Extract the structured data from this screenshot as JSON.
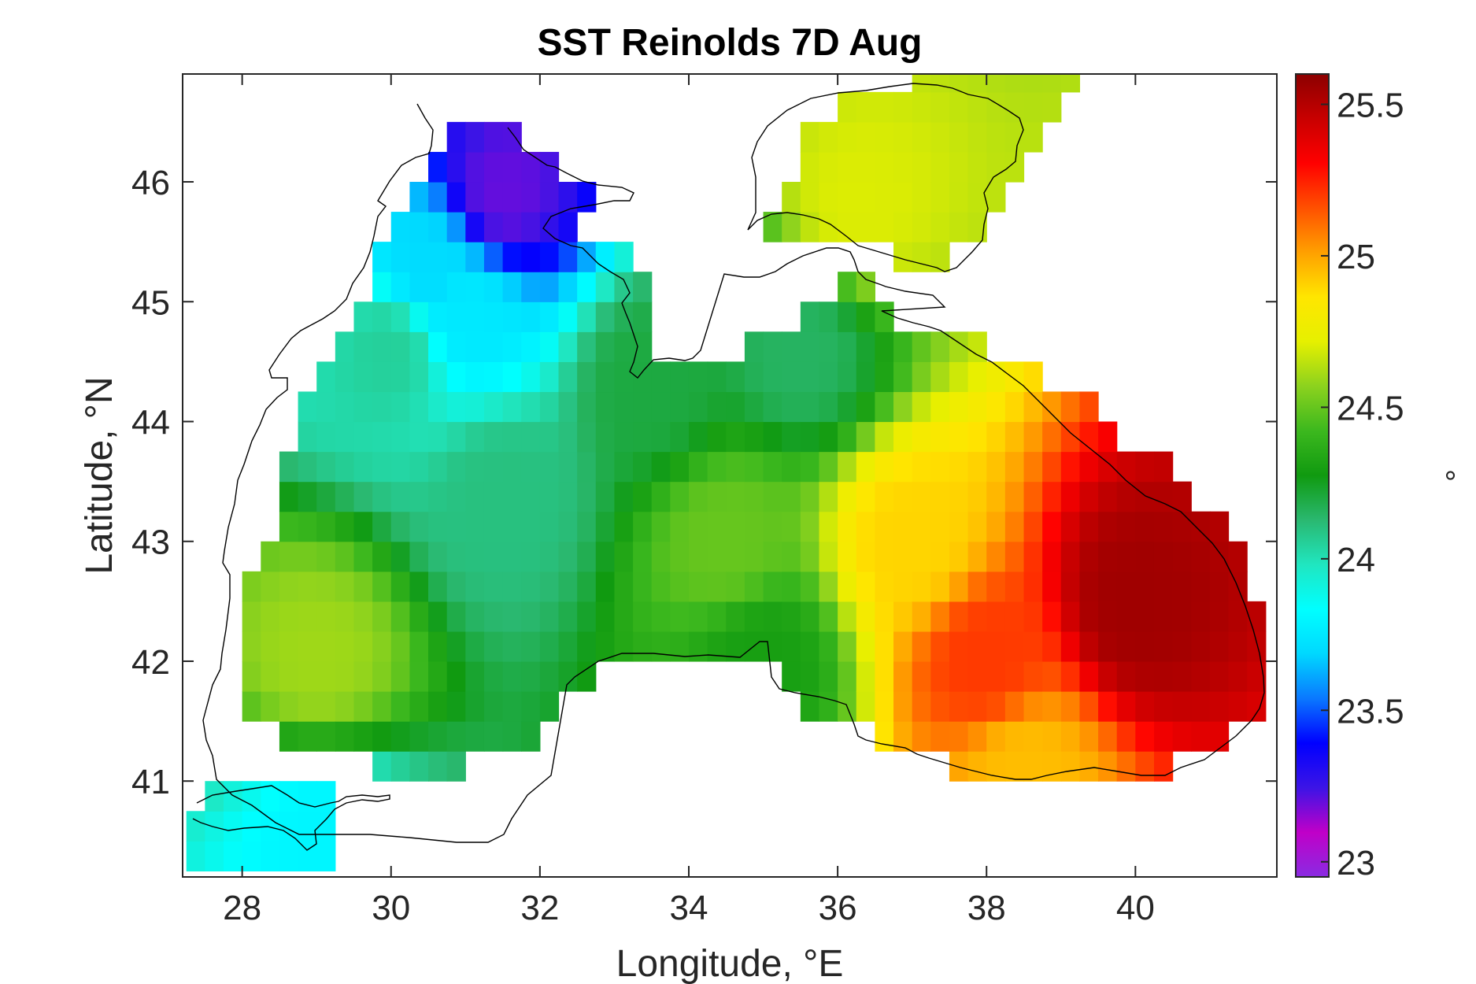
{
  "chart_data": {
    "type": "heatmap",
    "title": "SST Reinolds 7D Aug",
    "xlabel": "Longitude, °E",
    "ylabel": "Latitude, °N",
    "colorbar_label": "°",
    "xlim": [
      27.2,
      41.9
    ],
    "ylim": [
      40.2,
      46.9
    ],
    "x_ticks": [
      28,
      30,
      32,
      34,
      36,
      38,
      40
    ],
    "x_tick_labels": [
      "28",
      "30",
      "32",
      "34",
      "36",
      "38",
      "40"
    ],
    "y_ticks": [
      41,
      42,
      43,
      44,
      45,
      46
    ],
    "y_tick_labels": [
      "41",
      "42",
      "43",
      "44",
      "45",
      "46"
    ],
    "clim": [
      22.95,
      25.6
    ],
    "colorbar_ticks": [
      23,
      23.5,
      24,
      24.5,
      25,
      25.5
    ],
    "colorbar_tick_labels": [
      "23",
      "23.5",
      "24",
      "24.5",
      "25",
      "25.5"
    ],
    "cell_size_deg": 0.25,
    "grid": false,
    "colormap": [
      "#8a2be2",
      "#c000c8",
      "#3c14e6",
      "#0000ff",
      "#0a78ff",
      "#00d8ff",
      "#00ffff",
      "#20e6c0",
      "#2ab870",
      "#109a10",
      "#3cb81e",
      "#8cd21e",
      "#e6f000",
      "#ffe600",
      "#ffa000",
      "#ff5000",
      "#ff0000",
      "#c80000",
      "#8c0000"
    ],
    "sst_field": {
      "description_of_regions": "representative values read from the color scale",
      "values_degC": [
        {
          "lon": 31.5,
          "lat": 45.9,
          "value": 23.2
        },
        {
          "lon": 30.5,
          "lat": 45.3,
          "value": 23.7
        },
        {
          "lon": 31.0,
          "lat": 44.9,
          "value": 23.75
        },
        {
          "lon": 30.0,
          "lat": 44.6,
          "value": 24.05
        },
        {
          "lon": 31.5,
          "lat": 43.4,
          "value": 24.1
        },
        {
          "lon": 33.5,
          "lat": 44.3,
          "value": 24.2
        },
        {
          "lon": 35.5,
          "lat": 44.6,
          "value": 24.15
        },
        {
          "lon": 34.5,
          "lat": 43.0,
          "value": 24.5
        },
        {
          "lon": 29.0,
          "lat": 42.0,
          "value": 24.6
        },
        {
          "lon": 35.0,
          "lat": 42.0,
          "value": 24.3
        },
        {
          "lon": 37.0,
          "lat": 43.0,
          "value": 24.9
        },
        {
          "lon": 38.0,
          "lat": 42.0,
          "value": 25.2
        },
        {
          "lon": 40.0,
          "lat": 42.5,
          "value": 25.55
        },
        {
          "lon": 38.5,
          "lat": 41.1,
          "value": 24.95
        },
        {
          "lon": 36.3,
          "lat": 45.8,
          "value": 24.7
        },
        {
          "lon": 29.0,
          "lat": 40.6,
          "value": 23.8
        }
      ]
    }
  }
}
